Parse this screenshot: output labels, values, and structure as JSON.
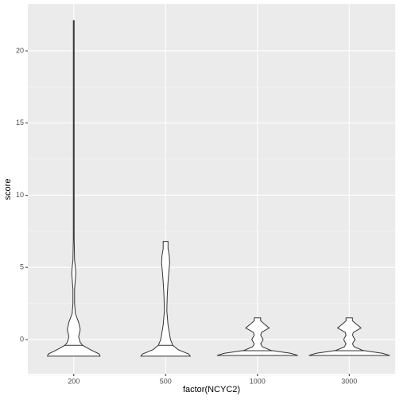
{
  "chart_data": {
    "type": "violin",
    "x_label": "factor(NCYC2)",
    "y_label": "score",
    "categories": [
      "200",
      "500",
      "1000",
      "3000"
    ],
    "ylim": [
      -2.37,
      23.25
    ],
    "yticks": [
      0,
      5,
      10,
      15,
      20
    ],
    "grid": true,
    "violins": [
      {
        "y": [
          -1.15,
          -1.0,
          -0.7,
          -0.4,
          -0.2,
          0.2,
          0.7,
          1.2,
          1.8,
          2.5,
          3.5,
          4.2,
          4.6,
          5.0,
          5.5,
          7,
          10,
          15,
          20,
          22.1
        ],
        "width": [
          0.65,
          0.63,
          0.41,
          0.22,
          0.16,
          0.12,
          0.16,
          0.12,
          0.04,
          0.02,
          0.02,
          0.04,
          0.05,
          0.04,
          0.02,
          0.01,
          0.01,
          0.01,
          0.01,
          0.01
        ],
        "median": -0.4
      },
      {
        "y": [
          -1.15,
          -1.0,
          -0.7,
          -0.4,
          0,
          1,
          2,
          3,
          4,
          4.7,
          5.3,
          5.8,
          6.3,
          6.8
        ],
        "width": [
          0.61,
          0.57,
          0.31,
          0.18,
          0.12,
          0.06,
          0.03,
          0.04,
          0.06,
          0.08,
          0.1,
          0.09,
          0.06,
          0.06
        ],
        "median": -0.4
      },
      {
        "y": [
          -1.1,
          -0.95,
          -0.75,
          -0.5,
          -0.3,
          0,
          0.3,
          0.5,
          0.8,
          1.1,
          1.3,
          1.5
        ],
        "width": [
          1,
          0.82,
          0.33,
          0.12,
          0.08,
          0.14,
          0.08,
          0.1,
          0.29,
          0.16,
          0.08,
          0.08
        ],
        "median": -0.77
      },
      {
        "y": [
          -1.1,
          -0.95,
          -0.75,
          -0.5,
          -0.3,
          0,
          0.3,
          0.5,
          0.8,
          1.1,
          1.3,
          1.5
        ],
        "width": [
          1,
          0.82,
          0.33,
          0.12,
          0.08,
          0.14,
          0.08,
          0.1,
          0.29,
          0.16,
          0.08,
          0.08
        ],
        "median": -0.77
      }
    ]
  }
}
